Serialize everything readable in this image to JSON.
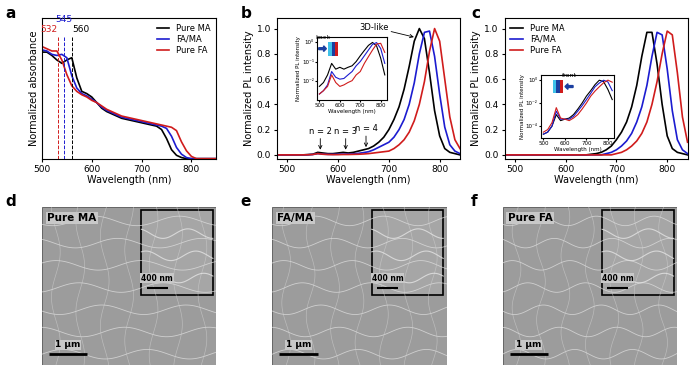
{
  "chart_data": [
    {
      "panel": "a",
      "type": "line",
      "xlabel": "Wavelength (nm)",
      "ylabel": "Normalized absorbance",
      "xlim": [
        500,
        850
      ],
      "ylim": [
        0,
        1.25
      ],
      "xticks": [
        500,
        600,
        700,
        800
      ],
      "tick_labels": "x",
      "legend": "upper right",
      "x": [
        500,
        510,
        520,
        530,
        540,
        550,
        560,
        570,
        580,
        590,
        600,
        610,
        620,
        630,
        640,
        650,
        660,
        670,
        680,
        690,
        700,
        710,
        720,
        730,
        740,
        750,
        760,
        770,
        780,
        790,
        800,
        810,
        820,
        830,
        840,
        850
      ],
      "series": [
        {
          "name": "Pure MA",
          "color": "#000000",
          "values": [
            0.95,
            0.95,
            0.92,
            0.88,
            0.85,
            0.88,
            0.9,
            0.72,
            0.6,
            0.58,
            0.55,
            0.5,
            0.45,
            0.42,
            0.4,
            0.38,
            0.36,
            0.35,
            0.34,
            0.33,
            0.32,
            0.31,
            0.3,
            0.29,
            0.26,
            0.18,
            0.08,
            0.03,
            0.01,
            0,
            0,
            0,
            0,
            0,
            0,
            0
          ]
        },
        {
          "name": "FA/MA",
          "color": "#1c1cd0",
          "values": [
            0.97,
            0.96,
            0.93,
            0.92,
            0.93,
            0.9,
            0.74,
            0.63,
            0.58,
            0.56,
            0.53,
            0.5,
            0.46,
            0.43,
            0.41,
            0.39,
            0.37,
            0.36,
            0.35,
            0.34,
            0.33,
            0.32,
            0.31,
            0.3,
            0.29,
            0.27,
            0.2,
            0.1,
            0.04,
            0.01,
            0,
            0,
            0,
            0,
            0,
            0
          ]
        },
        {
          "name": "Pure FA",
          "color": "#d01c1c",
          "values": [
            1.0,
            0.98,
            0.96,
            0.96,
            0.88,
            0.75,
            0.65,
            0.6,
            0.57,
            0.55,
            0.52,
            0.5,
            0.47,
            0.44,
            0.42,
            0.4,
            0.38,
            0.37,
            0.36,
            0.35,
            0.34,
            0.33,
            0.32,
            0.31,
            0.3,
            0.29,
            0.28,
            0.25,
            0.15,
            0.07,
            0.02,
            0,
            0,
            0,
            0,
            0
          ]
        }
      ],
      "annotations": [
        {
          "text": "532",
          "x": 532,
          "color": "#d01c1c",
          "line_style": "dashed"
        },
        {
          "text": "545",
          "x": 545,
          "color": "#1c1cd0",
          "line_style": "dashed"
        },
        {
          "text": "560",
          "x": 560,
          "color": "#000000",
          "line_style": "dashed"
        }
      ]
    },
    {
      "panel": "b",
      "type": "line",
      "xlabel": "Wavelength (nm)",
      "ylabel": "Normalized PL intensity",
      "xlim": [
        480,
        840
      ],
      "ylim": [
        -0.03,
        1.08
      ],
      "xticks": [
        500,
        600,
        700,
        800
      ],
      "yticks": [
        {
          "value": 0,
          "label": "0.0"
        },
        {
          "value": 0.2,
          "label": "0.2"
        },
        {
          "value": 0.4,
          "label": "0.4"
        },
        {
          "value": 0.6,
          "label": "0.6"
        },
        {
          "value": 0.8,
          "label": "0.8"
        },
        {
          "value": 1,
          "label": "1.0"
        }
      ],
      "x": [
        480,
        490,
        500,
        510,
        520,
        530,
        540,
        550,
        560,
        570,
        580,
        590,
        600,
        610,
        620,
        630,
        640,
        650,
        660,
        670,
        680,
        690,
        700,
        710,
        720,
        730,
        740,
        750,
        760,
        770,
        780,
        790,
        800,
        810,
        820,
        830,
        840
      ],
      "series": [
        {
          "color": "#000000",
          "values": [
            0,
            0,
            0,
            0,
            0,
            0,
            0.002,
            0.005,
            0.02,
            0.015,
            0.01,
            0.01,
            0.015,
            0.02,
            0.015,
            0.02,
            0.03,
            0.04,
            0.05,
            0.07,
            0.1,
            0.14,
            0.2,
            0.28,
            0.38,
            0.52,
            0.7,
            0.9,
            1.0,
            0.92,
            0.65,
            0.35,
            0.15,
            0.05,
            0.02,
            0.01,
            0
          ]
        },
        {
          "color": "#1c1cd0",
          "values": [
            0,
            0,
            0,
            0,
            0,
            0,
            0.001,
            0.003,
            0.01,
            0.006,
            0.004,
            0.004,
            0.005,
            0.006,
            0.006,
            0.008,
            0.012,
            0.018,
            0.025,
            0.04,
            0.06,
            0.08,
            0.1,
            0.14,
            0.2,
            0.28,
            0.4,
            0.57,
            0.8,
            0.97,
            0.98,
            0.78,
            0.48,
            0.22,
            0.08,
            0.03,
            0.01
          ]
        },
        {
          "color": "#d01c1c",
          "values": [
            0,
            0,
            0,
            0,
            0,
            0,
            0.001,
            0.003,
            0.01,
            0.005,
            0.003,
            0.002,
            0.002,
            0.003,
            0.003,
            0.004,
            0.005,
            0.007,
            0.01,
            0.015,
            0.02,
            0.025,
            0.03,
            0.05,
            0.08,
            0.12,
            0.18,
            0.27,
            0.4,
            0.58,
            0.82,
            1.0,
            0.9,
            0.6,
            0.3,
            0.12,
            0.05
          ]
        }
      ],
      "annotations": [
        {
          "text": "n = 2",
          "x": 565,
          "y": 0.03
        },
        {
          "text": "n = 3",
          "x": 615,
          "y": 0.03
        },
        {
          "text": "n = 4",
          "x": 655,
          "y": 0.05
        },
        {
          "text": "3D-like",
          "x": 752,
          "y": 0.93
        }
      ],
      "inset": {
        "text": "back",
        "xlabel": "Wavelength (nm)",
        "ylabel": "Normalized PL intensity",
        "log": "y",
        "xlim": [
          490,
          830
        ],
        "ylim": [
          0.001,
          2
        ],
        "xticks": [
          500,
          600,
          700,
          800
        ],
        "yticks": [
          {
            "value": 0.01,
            "label": "10⁻²"
          },
          {
            "value": 0.1,
            "label": "10⁻¹"
          },
          {
            "value": 1,
            "label": "10⁰"
          }
        ],
        "x": [
          500,
          520,
          540,
          560,
          580,
          600,
          620,
          640,
          660,
          680,
          700,
          720,
          740,
          760,
          780,
          800,
          820
        ],
        "series": [
          {
            "color": "#000000",
            "values": [
              0.005,
              0.008,
              0.02,
              0.08,
              0.04,
              0.05,
              0.04,
              0.05,
              0.06,
              0.1,
              0.2,
              0.38,
              0.7,
              1.0,
              0.65,
              0.15,
              0.02
            ]
          },
          {
            "color": "#1c1cd0",
            "values": [
              0.002,
              0.003,
              0.006,
              0.03,
              0.015,
              0.012,
              0.013,
              0.02,
              0.03,
              0.06,
              0.1,
              0.2,
              0.4,
              0.8,
              0.98,
              0.48,
              0.08
            ]
          },
          {
            "color": "#d01c1c",
            "values": [
              0.002,
              0.003,
              0.005,
              0.02,
              0.008,
              0.005,
              0.006,
              0.008,
              0.01,
              0.02,
              0.03,
              0.08,
              0.18,
              0.4,
              0.82,
              0.9,
              0.3
            ]
          }
        ]
      }
    },
    {
      "panel": "c",
      "type": "line",
      "xlabel": "Wavelength (nm)",
      "ylabel": "Normalized PL intensity",
      "xlim": [
        480,
        840
      ],
      "ylim": [
        -0.03,
        1.08
      ],
      "xticks": [
        500,
        600,
        700,
        800
      ],
      "yticks": [
        {
          "value": 0,
          "label": "0.0"
        },
        {
          "value": 0.2,
          "label": "0.2"
        },
        {
          "value": 0.4,
          "label": "0.4"
        },
        {
          "value": 0.6,
          "label": "0.6"
        },
        {
          "value": 0.8,
          "label": "0.8"
        },
        {
          "value": 1,
          "label": "1.0"
        }
      ],
      "legend": "upper left",
      "x": [
        480,
        490,
        500,
        510,
        520,
        530,
        540,
        550,
        560,
        570,
        580,
        590,
        600,
        610,
        620,
        630,
        640,
        650,
        660,
        670,
        680,
        690,
        700,
        710,
        720,
        730,
        740,
        750,
        760,
        770,
        780,
        790,
        800,
        810,
        820,
        830,
        840
      ],
      "series": [
        {
          "name": "Pure MA",
          "color": "#000000",
          "values": [
            0,
            0,
            0,
            0,
            0,
            0,
            0,
            0,
            0,
            0,
            0,
            0,
            0,
            0,
            0,
            0,
            0,
            0.005,
            0.01,
            0.02,
            0.04,
            0.07,
            0.12,
            0.18,
            0.26,
            0.38,
            0.55,
            0.78,
            0.97,
            0.97,
            0.72,
            0.4,
            0.15,
            0.05,
            0.02,
            0.01,
            0
          ]
        },
        {
          "name": "FA/MA",
          "color": "#1c1cd0",
          "values": [
            0,
            0,
            0,
            0,
            0,
            0,
            0,
            0,
            0,
            0,
            0,
            0,
            0,
            0,
            0,
            0,
            0,
            0,
            0,
            0,
            0.01,
            0.02,
            0.04,
            0.07,
            0.11,
            0.17,
            0.26,
            0.38,
            0.55,
            0.78,
            0.97,
            0.95,
            0.68,
            0.35,
            0.12,
            0.04,
            0.01
          ]
        },
        {
          "name": "Pure FA",
          "color": "#d01c1c",
          "values": [
            0,
            0,
            0,
            0,
            0,
            0,
            0,
            0,
            0,
            0,
            0,
            0,
            0,
            0,
            0,
            0,
            0,
            0,
            0,
            0,
            0,
            0,
            0.01,
            0.02,
            0.04,
            0.07,
            0.11,
            0.17,
            0.26,
            0.4,
            0.58,
            0.8,
            0.98,
            0.95,
            0.65,
            0.3,
            0.1
          ]
        }
      ],
      "inset": {
        "text": "front",
        "xlabel": "Wavelength (nm)",
        "ylabel": "Normalized PL intensity",
        "log": "y",
        "xlim": [
          490,
          830
        ],
        "ylim": [
          1e-05,
          3
        ],
        "xticks": [
          500,
          600,
          700,
          800
        ],
        "yticks": [
          {
            "value": 0.0001,
            "label": "10⁻⁴"
          },
          {
            "value": 0.01,
            "label": "10⁻²"
          },
          {
            "value": 1,
            "label": "10⁰"
          }
        ],
        "x": [
          500,
          520,
          540,
          560,
          580,
          600,
          620,
          640,
          660,
          680,
          700,
          720,
          740,
          760,
          780,
          800,
          820
        ],
        "series": [
          {
            "color": "#000000",
            "values": [
              2e-05,
              3e-05,
              0.0001,
              0.001,
              0.0003,
              0.0004,
              0.0005,
              0.001,
              0.003,
              0.01,
              0.04,
              0.12,
              0.4,
              0.97,
              0.72,
              0.15,
              0.02
            ]
          },
          {
            "color": "#1c1cd0",
            "values": [
              2e-05,
              3e-05,
              0.0001,
              0.002,
              0.0004,
              0.0004,
              0.0004,
              0.0007,
              0.002,
              0.006,
              0.02,
              0.07,
              0.26,
              0.55,
              0.97,
              0.68,
              0.12
            ]
          },
          {
            "color": "#d01c1c",
            "values": [
              3e-05,
              5e-05,
              0.0002,
              0.004,
              0.0005,
              0.0004,
              0.0003,
              0.0005,
              0.001,
              0.003,
              0.01,
              0.04,
              0.11,
              0.26,
              0.58,
              0.98,
              0.65
            ]
          }
        ]
      }
    }
  ],
  "images": [
    {
      "panel": "d",
      "title": "Pure MA",
      "scale_bar": "1 μm",
      "inset_scale_bar": "400 nm"
    },
    {
      "panel": "e",
      "title": "FA/MA",
      "scale_bar": "1 μm",
      "inset_scale_bar": "400 nm"
    },
    {
      "panel": "f",
      "title": "Pure FA",
      "scale_bar": "1 μm",
      "inset_scale_bar": "400 nm"
    }
  ]
}
